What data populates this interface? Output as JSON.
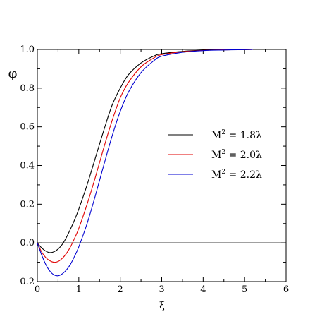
{
  "chart_data": {
    "type": "line",
    "title": "",
    "xlabel": "ξ",
    "ylabel": "φ",
    "xlim": [
      0,
      6
    ],
    "ylim": [
      -0.2,
      1.0
    ],
    "x_ticks": [
      "0",
      "1",
      "2",
      "3",
      "4",
      "5",
      "6"
    ],
    "y_ticks": [
      "-0.2",
      "0.0",
      "0.2",
      "0.4",
      "0.6",
      "0.8",
      "1.0"
    ],
    "grid": false,
    "legend_position": "right",
    "reference_line": {
      "y": 0.0,
      "color": "#000000"
    },
    "series": [
      {
        "name": "M² = 1.8λ",
        "legend": {
          "base": "M",
          "sup": "2",
          "rest": " = 1.8λ"
        },
        "color": "#000000",
        "x": [
          0,
          0.1,
          0.2,
          0.3,
          0.4,
          0.5,
          0.6,
          0.7,
          0.8,
          0.9,
          1.0,
          1.2,
          1.4,
          1.6,
          1.8,
          2.0,
          2.2,
          2.5,
          2.8,
          3.0,
          3.5,
          4.0,
          4.5,
          5.0,
          5.2
        ],
        "y": [
          0.0,
          -0.025,
          -0.042,
          -0.05,
          -0.046,
          -0.032,
          -0.008,
          0.028,
          0.072,
          0.12,
          0.175,
          0.3,
          0.44,
          0.58,
          0.71,
          0.8,
          0.87,
          0.93,
          0.965,
          0.978,
          0.99,
          0.996,
          0.998,
          0.999,
          1.0
        ]
      },
      {
        "name": "M² = 2.0λ",
        "legend": {
          "base": "M",
          "sup": "2",
          "rest": " = 2.0λ"
        },
        "color": "#e00000",
        "x": [
          0,
          0.1,
          0.2,
          0.3,
          0.4,
          0.5,
          0.6,
          0.7,
          0.8,
          0.9,
          1.0,
          1.2,
          1.4,
          1.6,
          1.8,
          2.0,
          2.2,
          2.5,
          2.8,
          3.0,
          3.5,
          4.0,
          4.5,
          5.0,
          5.2
        ],
        "y": [
          0.0,
          -0.045,
          -0.075,
          -0.092,
          -0.1,
          -0.096,
          -0.08,
          -0.055,
          -0.02,
          0.025,
          0.075,
          0.2,
          0.34,
          0.49,
          0.63,
          0.75,
          0.83,
          0.91,
          0.955,
          0.973,
          0.988,
          0.995,
          0.998,
          0.999,
          1.0
        ]
      },
      {
        "name": "M² = 2.2λ",
        "legend": {
          "base": "M",
          "sup": "2",
          "rest": " = 2.2λ"
        },
        "color": "#0000d0",
        "x": [
          0,
          0.1,
          0.2,
          0.3,
          0.4,
          0.5,
          0.6,
          0.7,
          0.8,
          0.9,
          1.0,
          1.2,
          1.4,
          1.6,
          1.8,
          2.0,
          2.2,
          2.5,
          2.8,
          3.0,
          3.5,
          4.0,
          4.5,
          5.0,
          5.2
        ],
        "y": [
          0.0,
          -0.06,
          -0.11,
          -0.145,
          -0.165,
          -0.17,
          -0.16,
          -0.14,
          -0.11,
          -0.068,
          -0.02,
          0.1,
          0.245,
          0.4,
          0.55,
          0.68,
          0.78,
          0.88,
          0.94,
          0.965,
          0.985,
          0.994,
          0.997,
          0.999,
          1.0
        ]
      }
    ]
  }
}
